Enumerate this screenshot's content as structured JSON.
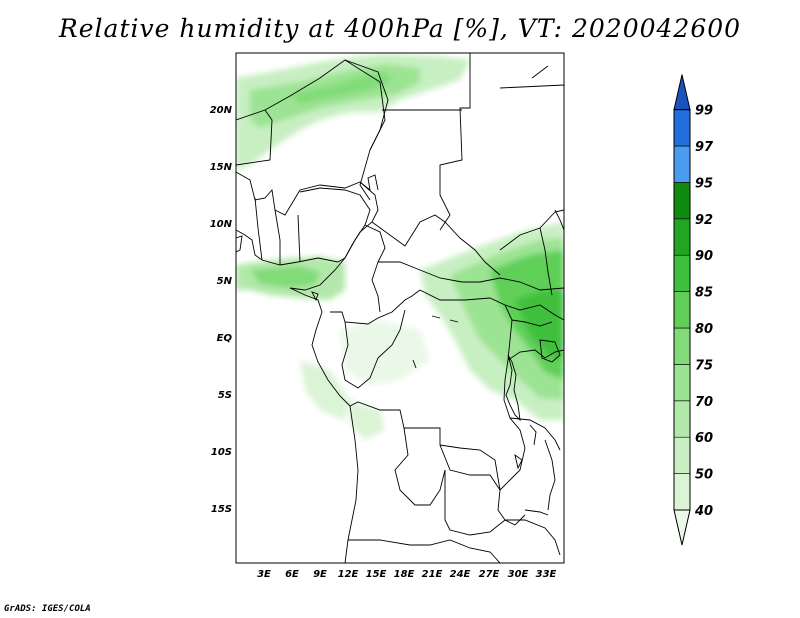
{
  "title": "Relative humidity at 400hPa [%], VT: 2020042600",
  "footer": "GrADS: IGES/COLA",
  "lat_ticks": [
    "20N",
    "15N",
    "10N",
    "5N",
    "EQ",
    "5S",
    "10S",
    "15S"
  ],
  "lon_ticks": [
    "3E",
    "6E",
    "9E",
    "12E",
    "15E",
    "18E",
    "21E",
    "24E",
    "27E",
    "30E",
    "33E"
  ],
  "colorbar": {
    "levels": [
      "40",
      "50",
      "60",
      "70",
      "75",
      "80",
      "85",
      "90",
      "92",
      "95",
      "97",
      "99"
    ],
    "colors": [
      "#eaf8e8",
      "#dbf4d6",
      "#c8efc2",
      "#b3e8ab",
      "#9ce393",
      "#81db78",
      "#5fcf58",
      "#3fbf3e",
      "#21a523",
      "#0f8b10",
      "#4a9cf0",
      "#2170dd",
      "#1a52c0"
    ]
  }
}
